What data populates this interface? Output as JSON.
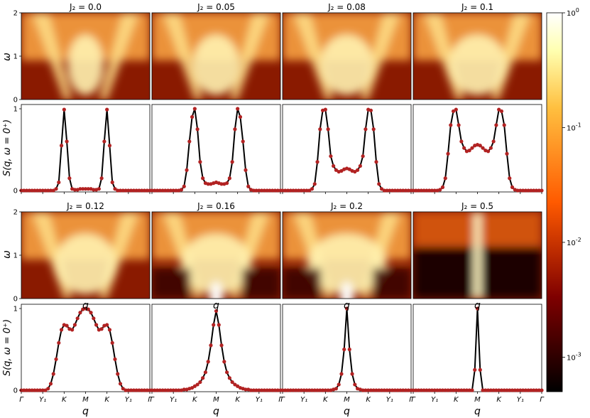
{
  "chart_data": {
    "type": "heatmap",
    "colorbar": {
      "scale": "log",
      "range": [
        0.0005,
        1
      ],
      "tick_labels": [
        "10^0",
        "10^-1",
        "10^-2",
        "10^-3"
      ],
      "tick_values": [
        1,
        0.1,
        0.01,
        0.001
      ],
      "colormap": "afmhot"
    },
    "heatmap_ylabel": "ω",
    "heatmap_yticks": [
      "0",
      "1",
      "2"
    ],
    "heatmap_ylim": [
      0,
      2
    ],
    "line_ylabel": "S(q, ω = 0⁺)",
    "line_yticks": [
      "0",
      "1"
    ],
    "line_ylim": [
      0,
      1
    ],
    "line_color": "#000000",
    "marker_color": "#b22222",
    "xlabel": "q",
    "path_labels": [
      "Γ",
      "Y₁",
      "K",
      "M",
      "K",
      "Y₁",
      "Γ"
    ],
    "path_positions": [
      0,
      0.2,
      0.4,
      0.6,
      0.8,
      1.0,
      1.2
    ],
    "x_samples": [
      0,
      0.025,
      0.05,
      0.075,
      0.1,
      0.125,
      0.15,
      0.175,
      0.2,
      0.225,
      0.25,
      0.275,
      0.3,
      0.325,
      0.35,
      0.375,
      0.4,
      0.425,
      0.45,
      0.475,
      0.5,
      0.525,
      0.55,
      0.575,
      0.6,
      0.625,
      0.65,
      0.675,
      0.7,
      0.725,
      0.75,
      0.775,
      0.8,
      0.825,
      0.85,
      0.875,
      0.9,
      0.925,
      0.95,
      0.975,
      1.0,
      1.025,
      1.05,
      1.075,
      1.1,
      1.125,
      1.15,
      1.175,
      1.2
    ],
    "panels": [
      {
        "title": "J₂ = 0.0",
        "s_values": [
          0,
          0,
          0,
          0,
          0,
          0,
          0,
          0,
          0,
          0,
          0,
          0,
          0,
          0.02,
          0.1,
          0.55,
          0.99,
          0.6,
          0.15,
          0.02,
          0.01,
          0.01,
          0.02,
          0.02,
          0.02,
          0.02,
          0.02,
          0.01,
          0.01,
          0.02,
          0.15,
          0.6,
          0.99,
          0.55,
          0.1,
          0.02,
          0,
          0,
          0,
          0,
          0,
          0,
          0,
          0,
          0,
          0,
          0,
          0,
          0
        ]
      },
      {
        "title": "J₂ = 0.05",
        "s_values": [
          0,
          0,
          0,
          0,
          0,
          0,
          0,
          0,
          0,
          0,
          0,
          0.01,
          0.05,
          0.25,
          0.6,
          0.9,
          1.0,
          0.75,
          0.35,
          0.15,
          0.09,
          0.08,
          0.08,
          0.09,
          0.1,
          0.09,
          0.08,
          0.08,
          0.09,
          0.15,
          0.35,
          0.75,
          1.0,
          0.9,
          0.6,
          0.25,
          0.05,
          0.01,
          0,
          0,
          0,
          0,
          0,
          0,
          0,
          0,
          0,
          0,
          0
        ]
      },
      {
        "title": "J₂ = 0.08",
        "s_values": [
          0,
          0,
          0,
          0,
          0,
          0,
          0,
          0,
          0,
          0,
          0,
          0.02,
          0.08,
          0.35,
          0.75,
          0.98,
          0.99,
          0.75,
          0.42,
          0.3,
          0.25,
          0.23,
          0.24,
          0.26,
          0.27,
          0.26,
          0.24,
          0.23,
          0.25,
          0.3,
          0.42,
          0.75,
          0.99,
          0.98,
          0.75,
          0.35,
          0.08,
          0.02,
          0,
          0,
          0,
          0,
          0,
          0,
          0,
          0,
          0,
          0,
          0
        ]
      },
      {
        "title": "J₂ = 0.1",
        "s_values": [
          0,
          0,
          0,
          0,
          0,
          0,
          0,
          0,
          0,
          0,
          0.01,
          0.04,
          0.15,
          0.45,
          0.8,
          0.97,
          0.99,
          0.8,
          0.6,
          0.52,
          0.48,
          0.49,
          0.52,
          0.55,
          0.56,
          0.55,
          0.52,
          0.49,
          0.48,
          0.52,
          0.6,
          0.8,
          0.99,
          0.97,
          0.8,
          0.45,
          0.15,
          0.04,
          0.01,
          0,
          0,
          0,
          0,
          0,
          0,
          0,
          0,
          0,
          0
        ]
      },
      {
        "title": "J₂ = 0.12",
        "s_values": [
          0,
          0,
          0,
          0,
          0,
          0,
          0,
          0,
          0,
          0,
          0.02,
          0.08,
          0.2,
          0.38,
          0.58,
          0.74,
          0.8,
          0.79,
          0.75,
          0.74,
          0.8,
          0.88,
          0.95,
          0.99,
          1.0,
          0.99,
          0.95,
          0.88,
          0.8,
          0.74,
          0.75,
          0.79,
          0.8,
          0.74,
          0.58,
          0.38,
          0.2,
          0.08,
          0.02,
          0,
          0,
          0,
          0,
          0,
          0,
          0,
          0,
          0,
          0
        ]
      },
      {
        "title": "J₂ = 0.16",
        "s_values": [
          0,
          0,
          0,
          0,
          0,
          0,
          0,
          0,
          0,
          0,
          0,
          0,
          0.01,
          0.01,
          0.02,
          0.03,
          0.05,
          0.07,
          0.1,
          0.15,
          0.22,
          0.35,
          0.55,
          0.8,
          0.97,
          0.8,
          0.55,
          0.35,
          0.22,
          0.15,
          0.1,
          0.07,
          0.05,
          0.03,
          0.02,
          0.01,
          0.01,
          0,
          0,
          0,
          0,
          0,
          0,
          0,
          0,
          0,
          0,
          0,
          0
        ]
      },
      {
        "title": "J₂ = 0.2",
        "s_values": [
          0,
          0,
          0,
          0,
          0,
          0,
          0,
          0,
          0,
          0,
          0,
          0,
          0,
          0,
          0,
          0,
          0,
          0,
          0,
          0.01,
          0.02,
          0.07,
          0.2,
          0.5,
          1.0,
          0.5,
          0.2,
          0.07,
          0.02,
          0.01,
          0,
          0,
          0,
          0,
          0,
          0,
          0,
          0,
          0,
          0,
          0,
          0,
          0,
          0,
          0,
          0,
          0,
          0,
          0
        ]
      },
      {
        "title": "J₂ = 0.5",
        "s_values": [
          0,
          0,
          0,
          0,
          0,
          0,
          0,
          0,
          0,
          0,
          0,
          0,
          0,
          0,
          0,
          0,
          0,
          0,
          0,
          0,
          0,
          0,
          0,
          0.25,
          1.0,
          0.25,
          0,
          0,
          0,
          0,
          0,
          0,
          0,
          0,
          0,
          0,
          0,
          0,
          0,
          0,
          0,
          0,
          0,
          0,
          0,
          0,
          0,
          0,
          0
        ]
      }
    ]
  }
}
